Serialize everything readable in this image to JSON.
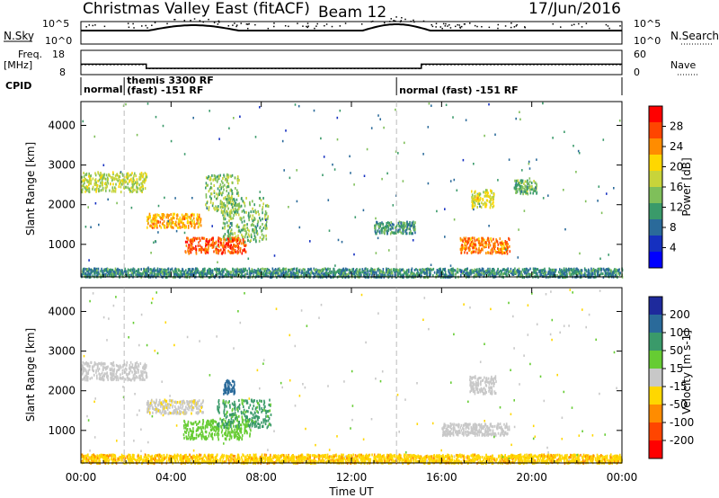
{
  "header": {
    "title": "Christmas Valley East (fitACF)",
    "beam": "Beam 12",
    "date": "17/Jun/2016"
  },
  "top_panels": {
    "nsky_label": "N.Sky",
    "nsky_ticks": [
      "10^5",
      "10^0"
    ],
    "nsearch_label": "N.Search",
    "freq_label_1": "Freq.",
    "freq_label_2": "[MHz]",
    "freq_ticks": [
      "18",
      "8"
    ],
    "nave_label": "Nave",
    "nave_ticks": [
      "60",
      "0"
    ],
    "cpid_label": "CPID",
    "cpid_segments": [
      {
        "text": "normal",
        "start_h": 0.0
      },
      {
        "text": "themis 3300 RF",
        "start_h": 1.92
      },
      {
        "text": "(fast) -151 RF",
        "start_h": 1.92
      },
      {
        "text": "normal (fast) -151 RF",
        "start_h": 14.0
      }
    ]
  },
  "power_colorbar": {
    "label": "Power [dB]",
    "ticks": [
      "28",
      "24",
      "20",
      "16",
      "12",
      "8",
      "4"
    ],
    "colors": [
      "#ff0000",
      "#ff4500",
      "#ff8c00",
      "#ffd700",
      "#c8d43a",
      "#7fbf5a",
      "#3a9a6a",
      "#2a6a9a",
      "#1530c0",
      "#0000ff"
    ]
  },
  "velocity_colorbar": {
    "label": "Velocity [m s-1]",
    "ticks": [
      "200",
      "100",
      "50",
      "15",
      "-15",
      "-50",
      "-100",
      "-200"
    ],
    "colors": [
      "#1e2a9c",
      "#2a6a9a",
      "#3a9a6a",
      "#66cc33",
      "#c8c8c8",
      "#ffd700",
      "#ff8c00",
      "#ff4500",
      "#ff0000"
    ]
  },
  "axes": {
    "ylabel": "Slant Range [km]",
    "yticks": [
      "4000",
      "3000",
      "2000",
      "1000"
    ],
    "xlabel": "Time UT",
    "xticks": [
      "00:00",
      "04:00",
      "08:00",
      "12:00",
      "16:00",
      "20:00",
      "00:00"
    ]
  },
  "chart_data": {
    "type": "heatmap",
    "title": "Christmas Valley East (fitACF)",
    "x": {
      "label": "Time UT",
      "range_hours": [
        0,
        24
      ]
    },
    "y": {
      "label": "Slant Range [km]",
      "range_km": [
        180,
        4600
      ]
    },
    "cpid_boundaries_hours": [
      1.92,
      14.0
    ],
    "frequency_mhz": [
      {
        "from_h": 0.0,
        "to_h": 2.9,
        "value": 12.3
      },
      {
        "from_h": 2.9,
        "to_h": 15.1,
        "value": 10.6
      },
      {
        "from_h": 15.1,
        "to_h": 24.0,
        "value": 12.3
      }
    ],
    "nave": [
      {
        "from_h": 0.0,
        "to_h": 2.9,
        "value": 25
      },
      {
        "from_h": 2.9,
        "to_h": 15.1,
        "value": 15
      },
      {
        "from_h": 15.1,
        "to_h": 24.0,
        "value": 25
      }
    ],
    "panels": [
      {
        "name": "Power",
        "unit": "dB",
        "scale": [
          0,
          30
        ],
        "features": [
          {
            "t0": 0.0,
            "t1": 2.9,
            "r0": 2350,
            "r1": 2850,
            "value": 16
          },
          {
            "t0": 2.9,
            "t1": 5.3,
            "r0": 1450,
            "r1": 1800,
            "value": 22
          },
          {
            "t0": 4.6,
            "t1": 7.3,
            "r0": 800,
            "r1": 1200,
            "value": 26
          },
          {
            "t0": 5.5,
            "t1": 7.0,
            "r0": 1800,
            "r1": 2800,
            "value": 14
          },
          {
            "t0": 6.2,
            "t1": 8.3,
            "r0": 1100,
            "r1": 2200,
            "value": 13
          },
          {
            "t0": 13.0,
            "t1": 14.8,
            "r0": 1300,
            "r1": 1600,
            "value": 10
          },
          {
            "t0": 16.8,
            "t1": 19.0,
            "r0": 800,
            "r1": 1200,
            "value": 24
          },
          {
            "t0": 17.3,
            "t1": 18.3,
            "r0": 1950,
            "r1": 2400,
            "value": 18
          },
          {
            "t0": 19.2,
            "t1": 20.2,
            "r0": 2300,
            "r1": 2650,
            "value": 12
          },
          {
            "t0": 0.0,
            "t1": 24.0,
            "r0": 200,
            "r1": 420,
            "value": 9
          }
        ]
      },
      {
        "name": "Velocity",
        "unit": "m s-1",
        "scale": [
          -200,
          200
        ],
        "features": [
          {
            "t0": 0.0,
            "t1": 2.9,
            "r0": 2300,
            "r1": 2750,
            "value": 0
          },
          {
            "t0": 2.9,
            "t1": 5.4,
            "r0": 1450,
            "r1": 1800,
            "value": -5
          },
          {
            "t0": 4.5,
            "t1": 7.5,
            "r0": 800,
            "r1": 1300,
            "value": 30
          },
          {
            "t0": 6.0,
            "t1": 8.4,
            "r0": 1100,
            "r1": 1800,
            "value": 60
          },
          {
            "t0": 6.3,
            "t1": 6.8,
            "r0": 1950,
            "r1": 2300,
            "value": 180
          },
          {
            "t0": 16.0,
            "t1": 19.0,
            "r0": 900,
            "r1": 1200,
            "value": 0
          },
          {
            "t0": 17.2,
            "t1": 18.4,
            "r0": 1950,
            "r1": 2400,
            "value": 0
          },
          {
            "t0": 0.0,
            "t1": 24.0,
            "r0": 200,
            "r1": 420,
            "value": -40
          }
        ]
      }
    ]
  }
}
